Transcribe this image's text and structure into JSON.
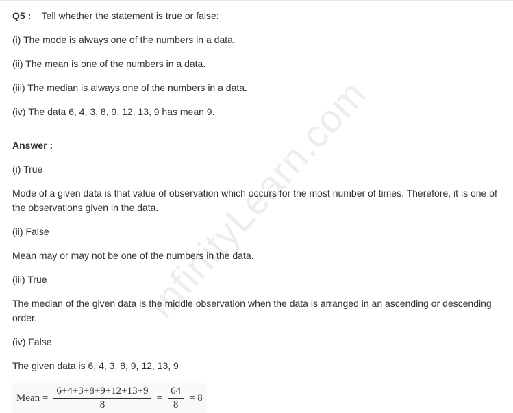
{
  "question": {
    "label": "Q5 :",
    "prompt": "Tell whether the statement is true or false:",
    "items": [
      "(i) The mode is always one of the numbers in a data.",
      "(ii) The mean is one of the numbers in a data.",
      "(iii) The median is always one of the numbers in a data.",
      "(iv) The data 6, 4, 3, 8, 9, 12, 13, 9 has mean 9."
    ]
  },
  "answer": {
    "label": "Answer :",
    "parts": [
      {
        "heading": "(i) True",
        "body": "Mode of a given data is that value of observation which occurs for the most number of times. Therefore, it is one of the observations given in the data."
      },
      {
        "heading": "(ii) False",
        "body": "Mean may or may not be one of the numbers in the data."
      },
      {
        "heading": "(iii) True",
        "body": "The median of the given data is the middle observation when the data is arranged in an ascending or descending order."
      },
      {
        "heading": "(iv) False",
        "body": "The given data is 6, 4, 3, 8, 9, 12, 13, 9"
      }
    ]
  },
  "equation": {
    "lhs": "Mean =",
    "frac1_num": "6+4+3+8+9+12+13+9",
    "frac1_den": "8",
    "eq1": "=",
    "frac2_num": "64",
    "frac2_den": "8",
    "eq2": "= 8"
  },
  "watermark": "InfinityLearn.com"
}
